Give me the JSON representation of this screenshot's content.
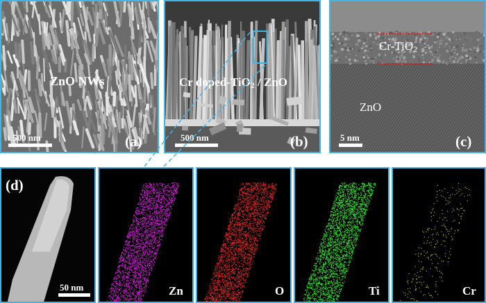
{
  "panels": {
    "a": {
      "letter": "(a)",
      "label": "ZnO NWs",
      "scale": "500 nm"
    },
    "b": {
      "letter": "(b)",
      "label_main": "Cr doped-TiO",
      "label_sub": "2",
      "label_tail": " / ZnO",
      "scale": "500 nm"
    },
    "c": {
      "letter": "(c)",
      "layer_main": "Cr-TiO",
      "layer_sub": "2",
      "core": "ZnO",
      "scale": "5 nm"
    },
    "d": {
      "letter": "(d)",
      "scale": "50 nm"
    },
    "maps": [
      {
        "element": "Zn",
        "color": "#d21ad8"
      },
      {
        "element": "O",
        "color": "#e02424"
      },
      {
        "element": "Ti",
        "color": "#2ee62e"
      },
      {
        "element": "Cr",
        "color": "#b8b81a"
      }
    ]
  },
  "colors": {
    "frame": "#3fb6e6",
    "interface_line": "#e01818"
  }
}
